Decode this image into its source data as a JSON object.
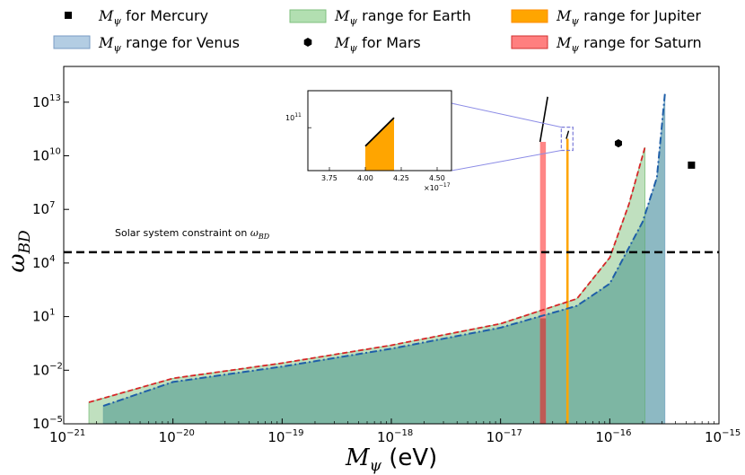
{
  "chart_data": {
    "type": "area",
    "xlabel_symbol": "M",
    "xlabel_sub": "ψ",
    "xlabel_unit": " (eV)",
    "ylabel_symbol": "ω",
    "ylabel_sub": "BD",
    "x_scale": "log",
    "y_scale": "log",
    "xlim": [
      1e-21,
      1e-15
    ],
    "ylim": [
      1e-05,
      1000000000000000.0
    ],
    "x_ticks": [
      {
        "value": 1e-21,
        "base": "10",
        "exp": "−21"
      },
      {
        "value": 1e-20,
        "base": "10",
        "exp": "−20"
      },
      {
        "value": 1e-19,
        "base": "10",
        "exp": "−19"
      },
      {
        "value": 1e-18,
        "base": "10",
        "exp": "−18"
      },
      {
        "value": 1e-17,
        "base": "10",
        "exp": "−17"
      },
      {
        "value": 1e-16,
        "base": "10",
        "exp": "−16"
      },
      {
        "value": 1e-15,
        "base": "10",
        "exp": "−15"
      }
    ],
    "y_ticks": [
      {
        "value": 1e-05,
        "base": "10",
        "exp": "−5"
      },
      {
        "value": 0.01,
        "base": "10",
        "exp": "−2"
      },
      {
        "value": 10.0,
        "base": "10",
        "exp": "1"
      },
      {
        "value": 10000.0,
        "base": "10",
        "exp": "4"
      },
      {
        "value": 10000000.0,
        "base": "10",
        "exp": "7"
      },
      {
        "value": 10000000000.0,
        "base": "10",
        "exp": "10"
      },
      {
        "value": 10000000000000.0,
        "base": "10",
        "exp": "13"
      }
    ],
    "constraint": {
      "value": 40000,
      "label": "Solar system constraint on ",
      "label_symbol": "ω",
      "label_sub": "BD"
    },
    "legend": [
      {
        "marker": "square",
        "color": "#000000",
        "prefix": "M",
        "sub": "ψ",
        "text": " for Mercury"
      },
      {
        "marker": "patch",
        "color": "#b3cde3",
        "edge": "#7a9cc4",
        "prefix": "M",
        "sub": "ψ",
        "text": " range for Venus"
      },
      {
        "marker": "patch",
        "color": "#b2dfb1",
        "edge": "#7fbf7e",
        "prefix": "M",
        "sub": "ψ",
        "text": " range for Earth"
      },
      {
        "marker": "hexagon",
        "color": "#000000",
        "prefix": "M",
        "sub": "ψ",
        "text": " for Mars"
      },
      {
        "marker": "patch",
        "color": "#ffa500",
        "edge": "#ff8c00",
        "prefix": "M",
        "sub": "ψ",
        "text": " range for Jupiter"
      },
      {
        "marker": "patch",
        "color": "#ff7f7f",
        "edge": "#d03030",
        "prefix": "M",
        "sub": "ψ",
        "text": " range for Saturn"
      }
    ],
    "series": [
      {
        "name": "Venus",
        "color": "#b3cde3",
        "line_color": "#1f5fa8",
        "line_style": "dashdot",
        "x": [
          2.3e-21,
          1e-20,
          1e-19,
          1e-18,
          1e-17,
          5e-17,
          1e-16,
          2e-16,
          2.7e-16,
          3.2e-16
        ],
        "y": [
          0.0001,
          0.0022,
          0.016,
          0.16,
          2.4,
          40,
          700,
          2000000,
          600000000,
          30000000000000
        ]
      },
      {
        "name": "Earth",
        "color": "#b2dfb1",
        "line_color": "#d62728",
        "line_style": "dashed",
        "x": [
          1.7e-21,
          1e-20,
          1e-19,
          1e-18,
          1e-17,
          5e-17,
          1e-16,
          1.5e-16,
          2.1e-16
        ],
        "y": [
          0.00016,
          0.0035,
          0.025,
          0.25,
          4,
          100,
          20000,
          20000000,
          30000000000
        ]
      },
      {
        "name": "Saturn",
        "color": "#ff7f7f",
        "x_range": [
          2.3e-17,
          2.6e-17
        ],
        "y_top": 60000000000
      },
      {
        "name": "Jupiter",
        "color": "#ffa500",
        "x_range": [
          4e-17,
          4.2e-17
        ],
        "y_top": 90000000000
      }
    ],
    "points": [
      {
        "name": "Mercury",
        "marker": "square",
        "x": 5.6e-16,
        "y": 3000000000
      },
      {
        "name": "Mars",
        "marker": "hexagon",
        "x": 1.2e-16,
        "y": 50000000000
      }
    ],
    "inset": {
      "xlim": [
        3.6e-17,
        4.6e-17
      ],
      "ylim": [
        20000000000.0,
        400000000000.0
      ],
      "x_ticks": [
        "3.75",
        "4.00",
        "4.25",
        "4.50"
      ],
      "x_tick_values": [
        3.75e-17,
        4e-17,
        4.25e-17,
        4.5e-17
      ],
      "x_offset_base": "×10",
      "x_offset_exp": "−17",
      "y_tick_base": "10",
      "y_tick_exp": "11",
      "y_tick_value": 100000000000.0,
      "fill_x": [
        4e-17,
        4.2e-17
      ],
      "fill_y_top": [
        50000000000.0,
        145000000000.0
      ]
    }
  }
}
